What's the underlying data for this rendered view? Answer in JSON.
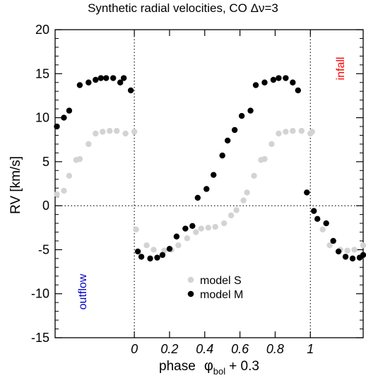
{
  "chart_data": {
    "type": "scatter",
    "title_prefix": "Synthetic radial velocities, CO ",
    "title_delta": "Δν=3",
    "xlabel": {
      "prefix": "phase",
      "symbol": "φ",
      "subscript": "bol",
      "suffix": "+ 0.3"
    },
    "ylabel": "RV   [km/s]",
    "xlim": [
      -0.45,
      1.3
    ],
    "ylim": [
      -15,
      20
    ],
    "xticks": [
      0,
      0.2,
      0.4,
      0.6,
      0.8,
      1
    ],
    "xtick_labels": [
      "0",
      "0.2",
      "0.4",
      "0.6",
      "0.8",
      "1"
    ],
    "yticks": [
      -15,
      -10,
      -5,
      0,
      5,
      10,
      15,
      20
    ],
    "ytick_labels": [
      "-15",
      "-10",
      "-5",
      "0",
      "5",
      "10",
      "15",
      "20"
    ],
    "reference_lines": {
      "x": [
        0,
        1
      ],
      "y": [
        0
      ]
    },
    "annotations": [
      {
        "text": "outflow",
        "color": "#0000cc"
      },
      {
        "text": "infall",
        "color": "#ff0000"
      }
    ],
    "legend": {
      "position": "bottom-center"
    },
    "series": [
      {
        "name": "model S",
        "color": "#d3d3d3",
        "x": [
          -0.44,
          -0.4,
          -0.37,
          -0.33,
          -0.31,
          -0.26,
          -0.22,
          -0.18,
          -0.14,
          -0.1,
          -0.05,
          0.0,
          0.01,
          0.07,
          0.11,
          0.17,
          0.21,
          0.25,
          0.3,
          0.35,
          0.38,
          0.42,
          0.46,
          0.51,
          0.55,
          0.58,
          0.62,
          0.64,
          0.68,
          0.72,
          0.74,
          0.78,
          0.82,
          0.86,
          0.9,
          0.95,
          1.0,
          1.01,
          1.07,
          1.11,
          1.17,
          1.21,
          1.25,
          1.3
        ],
        "y": [
          1.3,
          1.7,
          3.4,
          5.2,
          5.3,
          7.0,
          8.2,
          8.4,
          8.5,
          8.5,
          8.2,
          8.4,
          -2.7,
          -4.5,
          -5.0,
          -5.1,
          -5.0,
          -4.5,
          -3.7,
          -3.0,
          -2.6,
          -2.5,
          -2.4,
          -2.0,
          -1.1,
          -0.5,
          0.6,
          1.5,
          3.4,
          5.2,
          5.3,
          7.0,
          8.2,
          8.4,
          8.5,
          8.5,
          8.2,
          8.4,
          -2.7,
          -4.5,
          -5.0,
          -5.1,
          -5.0,
          -4.5
        ]
      },
      {
        "name": "model M",
        "color": "#000000",
        "x": [
          -0.44,
          -0.4,
          -0.37,
          -0.31,
          -0.26,
          -0.22,
          -0.19,
          -0.16,
          -0.12,
          -0.06,
          -0.08,
          -0.02,
          0.02,
          0.04,
          0.09,
          0.13,
          0.16,
          0.2,
          0.24,
          0.29,
          0.33,
          0.36,
          0.41,
          0.45,
          0.5,
          0.53,
          0.57,
          0.61,
          0.66,
          0.69,
          0.74,
          0.79,
          0.82,
          0.86,
          0.9,
          0.93,
          0.98,
          1.02,
          1.04,
          1.09,
          1.13,
          1.16,
          1.2,
          1.24,
          1.28,
          1.3
        ],
        "y": [
          9.0,
          10.0,
          10.8,
          13.7,
          14.0,
          14.3,
          14.5,
          14.5,
          14.5,
          14.5,
          14.0,
          13.1,
          -5.2,
          -5.8,
          -6.0,
          -5.9,
          -5.6,
          -4.9,
          -3.5,
          -2.6,
          -2.3,
          0.9,
          1.9,
          3.5,
          5.7,
          7.4,
          8.6,
          10.2,
          10.8,
          13.7,
          14.0,
          14.3,
          14.5,
          14.5,
          14.0,
          13.1,
          1.5,
          -0.6,
          -1.5,
          -2.0,
          -4.0,
          -5.2,
          -5.8,
          -6.0,
          -5.9,
          -5.6
        ]
      }
    ]
  }
}
